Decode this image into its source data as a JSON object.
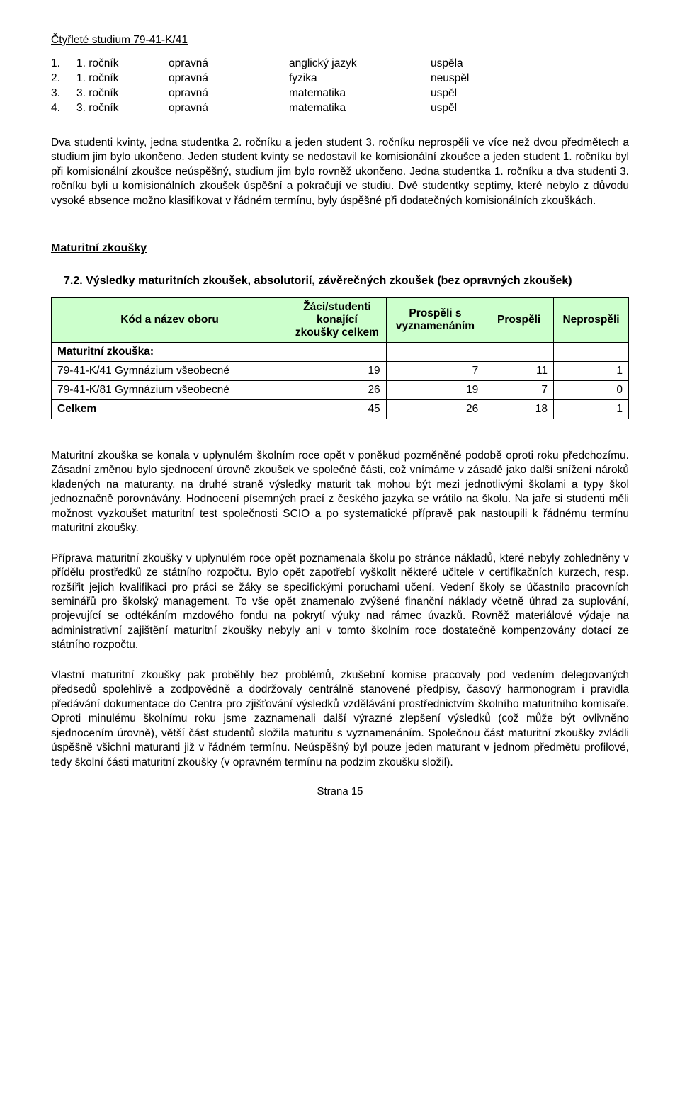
{
  "heading_study": "Čtyřleté studium 79-41-K/41",
  "exam_rows": [
    {
      "n": "1.",
      "year": "1. ročník",
      "type": "opravná",
      "subj": "anglický jazyk",
      "res": "uspěla"
    },
    {
      "n": "2.",
      "year": "1. ročník",
      "type": "opravná",
      "subj": "fyzika",
      "res": "neuspěl"
    },
    {
      "n": "3.",
      "year": "3. ročník",
      "type": "opravná",
      "subj": "matematika",
      "res": "uspěl"
    },
    {
      "n": "4.",
      "year": "3. ročník",
      "type": "opravná",
      "subj": "matematika",
      "res": "uspěl"
    }
  ],
  "para1": "Dva studenti kvinty, jedna studentka 2. ročníku a jeden student 3. ročníku neprospěli ve více než dvou předmětech a studium jim bylo ukončeno. Jeden student kvinty se nedostavil ke komisionální zkoušce a jeden student 1. ročníku byl při komisionální zkoušce neúspěšný, studium jim bylo rovněž ukončeno. Jedna studentka 1. ročníku a dva studenti 3. ročníku byli u komisionálních zkoušek úspěšní a pokračují ve studiu. Dvě studentky septimy, které nebylo z důvodu vysoké absence možno klasifikovat v řádném termínu, byly úspěšné při dodatečných komisionálních zkouškách.",
  "h_maturitni": "Maturitní zkoušky",
  "h_72": "7.2. Výsledky maturitních zkoušek, absolutorií, závěrečných zkoušek (bez opravných zkoušek)",
  "table": {
    "headers": {
      "c1": "Kód a název oboru",
      "c2": "Žáci/studenti konající zkoušky celkem",
      "c3": "Prospěli s vyznamenáním",
      "c4": "Prospěli",
      "c5": "Neprospěli"
    },
    "mat_row_label": "Maturitní  zkouška:",
    "rows": [
      {
        "label": "79-41-K/41 Gymnázium všeobecné",
        "v1": "19",
        "v2": "7",
        "v3": "11",
        "v4": "1"
      },
      {
        "label": "79-41-K/81 Gymnázium všeobecné",
        "v1": "26",
        "v2": "19",
        "v3": "7",
        "v4": "0"
      }
    ],
    "total": {
      "label": "Celkem",
      "v1": "45",
      "v2": "26",
      "v3": "18",
      "v4": "1"
    },
    "col_widths": [
      "41%",
      "17%",
      "17%",
      "12%",
      "13%"
    ]
  },
  "para2": "Maturitní zkouška se konala v uplynulém školním roce opět v poněkud pozměněné podobě oproti roku předchozímu. Zásadní změnou bylo sjednocení úrovně zkoušek ve společné části, což vnímáme v zásadě jako další snížení nároků kladených na maturanty, na druhé straně výsledky maturit tak mohou být mezi jednotlivými školami a typy škol jednoznačně porovnávány. Hodnocení písemných prací z českého jazyka se vrátilo na školu. Na jaře si studenti měli možnost vyzkoušet maturitní test společnosti SCIO a po systematické přípravě pak nastoupili k řádnému termínu maturitní zkoušky.",
  "para3": "Příprava maturitní zkoušky v uplynulém roce opět poznamenala školu po stránce nákladů, které nebyly zohledněny v přídělu prostředků ze státního rozpočtu. Bylo opět zapotřebí vyškolit některé učitele v certifikačních kurzech, resp. rozšířit jejich kvalifikaci pro práci se žáky se specifickými poruchami učení. Vedení školy se účastnilo pracovních seminářů pro školský management. To vše opět znamenalo zvýšené finanční náklady včetně úhrad za suplování, projevující se odtékáním mzdového fondu na pokrytí výuky nad rámec úvazků. Rovněž materiálové výdaje na administrativní zajištění maturitní zkoušky nebyly ani v tomto školním roce dostatečně kompenzovány dotací ze státního rozpočtu.",
  "para4": "Vlastní maturitní zkoušky pak proběhly bez problémů, zkušební komise pracovaly pod vedením delegovaných předsedů spolehlivě a zodpovědně a dodržovaly centrálně stanovené předpisy, časový harmonogram i pravidla předávání dokumentace do Centra pro zjišťování výsledků vzdělávání prostřednictvím školního maturitního komisaře. Oproti minulému školnímu roku jsme zaznamenali další výrazné zlepšení výsledků (což může být ovlivněno sjednocením úrovně), větší část studentů složila maturitu s vyznamenáním. Společnou část maturitní zkoušky zvládli úspěšně všichni maturanti již v řádném termínu. Neúspěšný byl pouze jeden maturant v jednom předmětu profilové, tedy školní části maturitní zkoušky (v opravném termínu na podzim zkoušku složil).",
  "footer": "Strana 15"
}
